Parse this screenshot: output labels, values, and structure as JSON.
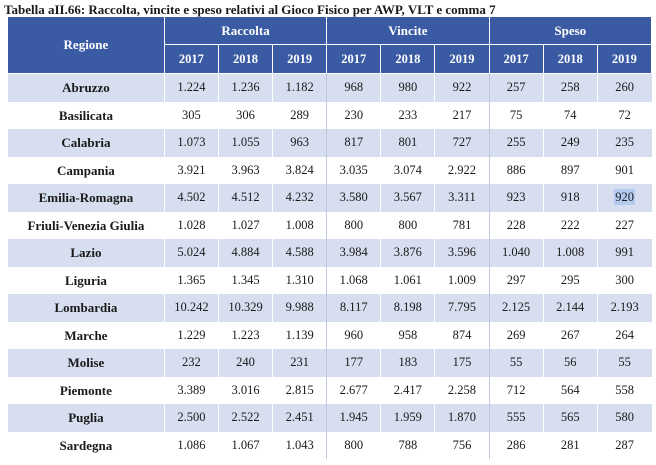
{
  "caption": "Tabella aII.66: Raccolta, vincite e speso relativi al Gioco Fisico per AWP, VLT e comma 7",
  "header": {
    "region_label": "Regione",
    "groups": [
      "Raccolta",
      "Vincite",
      "Speso"
    ],
    "years": [
      "2017",
      "2018",
      "2019"
    ]
  },
  "rows": [
    {
      "region": "Abruzzo",
      "values": [
        "1.224",
        "1.236",
        "1.182",
        "968",
        "980",
        "922",
        "257",
        "258",
        "260"
      ]
    },
    {
      "region": "Basilicata",
      "values": [
        "305",
        "306",
        "289",
        "230",
        "233",
        "217",
        "75",
        "74",
        "72"
      ]
    },
    {
      "region": "Calabria",
      "values": [
        "1.073",
        "1.055",
        "963",
        "817",
        "801",
        "727",
        "255",
        "249",
        "235"
      ]
    },
    {
      "region": "Campania",
      "values": [
        "3.921",
        "3.963",
        "3.824",
        "3.035",
        "3.074",
        "2.922",
        "886",
        "897",
        "901"
      ]
    },
    {
      "region": "Emilia-Romagna",
      "values": [
        "4.502",
        "4.512",
        "4.232",
        "3.580",
        "3.567",
        "3.311",
        "923",
        "918",
        "920"
      ]
    },
    {
      "region": "Friuli-Venezia Giulia",
      "values": [
        "1.028",
        "1.027",
        "1.008",
        "800",
        "800",
        "781",
        "228",
        "222",
        "227"
      ]
    },
    {
      "region": "Lazio",
      "values": [
        "5.024",
        "4.884",
        "4.588",
        "3.984",
        "3.876",
        "3.596",
        "1.040",
        "1.008",
        "991"
      ]
    },
    {
      "region": "Liguria",
      "values": [
        "1.365",
        "1.345",
        "1.310",
        "1.068",
        "1.061",
        "1.009",
        "297",
        "295",
        "300"
      ]
    },
    {
      "region": "Lombardia",
      "values": [
        "10.242",
        "10.329",
        "9.988",
        "8.117",
        "8.198",
        "7.795",
        "2.125",
        "2.144",
        "2.193"
      ]
    },
    {
      "region": "Marche",
      "values": [
        "1.229",
        "1.223",
        "1.139",
        "960",
        "958",
        "874",
        "269",
        "267",
        "264"
      ]
    },
    {
      "region": "Molise",
      "values": [
        "232",
        "240",
        "231",
        "177",
        "183",
        "175",
        "55",
        "56",
        "55"
      ]
    },
    {
      "region": "Piemonte",
      "values": [
        "3.389",
        "3.016",
        "2.815",
        "2.677",
        "2.417",
        "2.258",
        "712",
        "564",
        "558"
      ]
    },
    {
      "region": "Puglia",
      "values": [
        "2.500",
        "2.522",
        "2.451",
        "1.945",
        "1.959",
        "1.870",
        "555",
        "565",
        "580"
      ]
    },
    {
      "region": "Sardegna",
      "values": [
        "1.086",
        "1.067",
        "1.043",
        "800",
        "788",
        "756",
        "286",
        "281",
        "287"
      ]
    }
  ],
  "colors": {
    "header_bg": "#3a5ba4",
    "band_bg": "#d7deef",
    "highlight": "#b4cbef"
  }
}
